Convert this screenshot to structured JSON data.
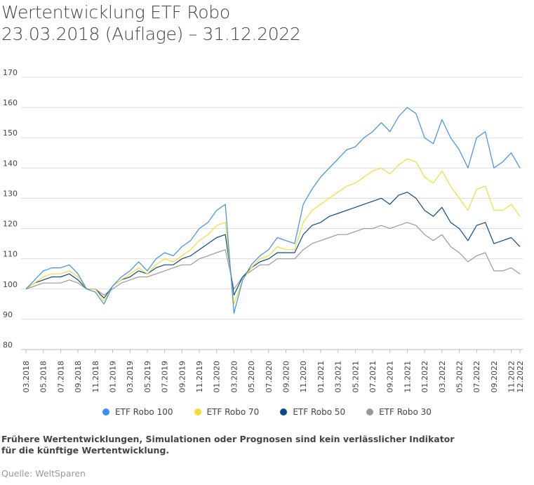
{
  "title_line1": "Wertentwicklung ETF Robo",
  "title_line2": "23.03.2018 (Auflage) – 31.12.2022",
  "footnote": "Frühere Wertentwicklungen, Simulationen oder Prognosen sind kein verlässlicher Indikator für die künftige Wertentwicklung.",
  "source": "Quelle: WeltSparen",
  "chart_data": {
    "type": "line",
    "ylim": [
      80,
      170
    ],
    "yticks": [
      80,
      90,
      100,
      110,
      120,
      130,
      140,
      150,
      160,
      170
    ],
    "grid": true,
    "legend_position": "bottom",
    "x": [
      "2018-03",
      "2018-04",
      "2018-05",
      "2018-06",
      "2018-07",
      "2018-08",
      "2018-09",
      "2018-10",
      "2018-11",
      "2018-12",
      "2019-01",
      "2019-02",
      "2019-03",
      "2019-04",
      "2019-05",
      "2019-06",
      "2019-07",
      "2019-08",
      "2019-09",
      "2019-10",
      "2019-11",
      "2019-12",
      "2020-01",
      "2020-02",
      "2020-03",
      "2020-04",
      "2020-05",
      "2020-06",
      "2020-07",
      "2020-08",
      "2020-09",
      "2020-10",
      "2020-11",
      "2020-12",
      "2021-01",
      "2021-02",
      "2021-03",
      "2021-04",
      "2021-05",
      "2021-06",
      "2021-07",
      "2021-08",
      "2021-09",
      "2021-10",
      "2021-11",
      "2021-12",
      "2022-01",
      "2022-02",
      "2022-03",
      "2022-04",
      "2022-05",
      "2022-06",
      "2022-07",
      "2022-08",
      "2022-09",
      "2022-10",
      "2022-11",
      "2022-12"
    ],
    "xtick_labels": [
      "03.2018",
      "05.2018",
      "07.2018",
      "09.2018",
      "11.2018",
      "01.2019",
      "03.2019",
      "05.2019",
      "07.2019",
      "09.2019",
      "11.2019",
      "01.2020",
      "03.2020",
      "05.2020",
      "07.2020",
      "09.2020",
      "11.2020",
      "01.2021",
      "03.2021",
      "05.2021",
      "07.2021",
      "09.2021",
      "11.2021",
      "01.2022",
      "03.2022",
      "05.2022",
      "07.2022",
      "09.2022",
      "11.2022",
      "12.2022"
    ],
    "series": [
      {
        "name": "ETF Robo 100",
        "color": "#3d8ef0",
        "values": [
          100,
          103,
          106,
          107,
          107,
          108,
          105,
          100,
          99,
          95,
          101,
          104,
          106,
          109,
          106,
          110,
          112,
          111,
          114,
          116,
          120,
          122,
          126,
          128,
          92,
          103,
          108,
          111,
          113,
          117,
          116,
          115,
          128,
          133,
          137,
          140,
          143,
          146,
          147,
          150,
          152,
          155,
          152,
          157,
          160,
          158,
          150,
          148,
          156,
          150,
          146,
          140,
          150,
          152,
          140,
          142,
          145,
          140
        ]
      },
      {
        "name": "ETF Robo 70",
        "color": "#f5dc32",
        "values": [
          100,
          102,
          104,
          105,
          105,
          106,
          104,
          100,
          100,
          96,
          101,
          103,
          105,
          107,
          105,
          108,
          110,
          109,
          111,
          113,
          116,
          118,
          121,
          122,
          95,
          103,
          107,
          110,
          111,
          114,
          113,
          113,
          122,
          126,
          128,
          130,
          132,
          134,
          135,
          137,
          139,
          140,
          138,
          141,
          143,
          142,
          137,
          135,
          139,
          134,
          130,
          126,
          133,
          134,
          126,
          126,
          128,
          124
        ]
      },
      {
        "name": "ETF Robo 50",
        "color": "#0a4a8c",
        "values": [
          100,
          102,
          103,
          104,
          104,
          105,
          103,
          100,
          100,
          97,
          101,
          103,
          104,
          106,
          105,
          107,
          108,
          108,
          110,
          111,
          113,
          115,
          117,
          118,
          98,
          104,
          107,
          109,
          110,
          112,
          112,
          112,
          118,
          121,
          122,
          124,
          125,
          126,
          127,
          128,
          129,
          130,
          128,
          131,
          132,
          130,
          126,
          124,
          127,
          122,
          120,
          116,
          121,
          122,
          115,
          116,
          117,
          114
        ]
      },
      {
        "name": "ETF Robo 30",
        "color": "#999999",
        "values": [
          100,
          101,
          102,
          102,
          102,
          103,
          102,
          100,
          100,
          98,
          100,
          102,
          103,
          104,
          104,
          105,
          106,
          107,
          108,
          108,
          110,
          111,
          112,
          113,
          100,
          104,
          106,
          108,
          108,
          110,
          110,
          110,
          113,
          115,
          116,
          117,
          118,
          118,
          119,
          120,
          120,
          121,
          120,
          121,
          122,
          121,
          118,
          116,
          118,
          114,
          112,
          109,
          111,
          112,
          106,
          106,
          107,
          105
        ]
      }
    ]
  }
}
